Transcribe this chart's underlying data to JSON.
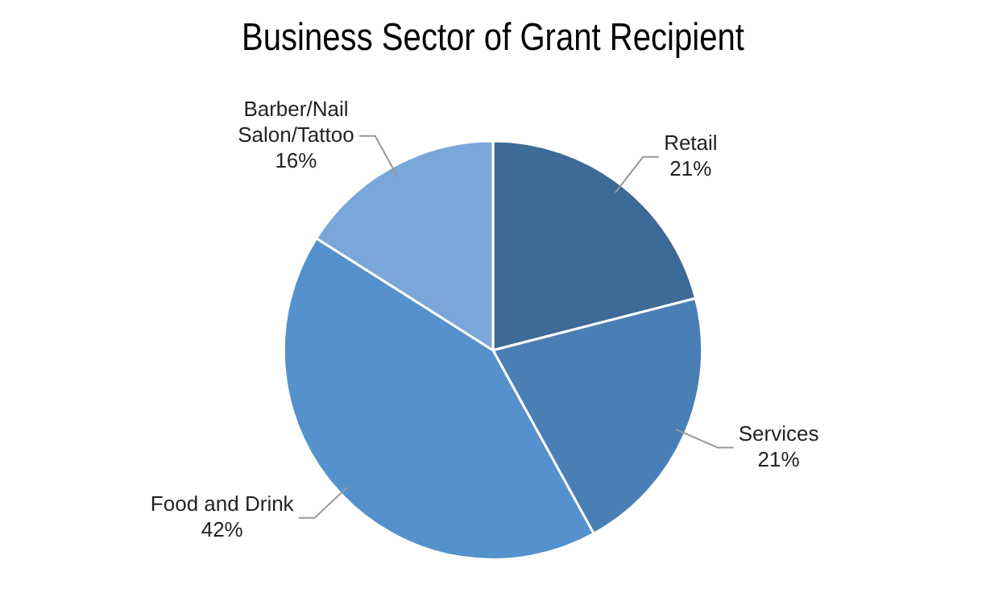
{
  "chart_data": {
    "type": "pie",
    "title": "Business Sector of Grant Recipient",
    "categories": [
      "Retail",
      "Services",
      "Food and Drink",
      "Barber/Nail Salon/Tattoo"
    ],
    "values": [
      21,
      21,
      42,
      16
    ],
    "colors": [
      "#3e6a97",
      "#4a7fb5",
      "#5591cc",
      "#7aa6d9"
    ],
    "value_labels": [
      "21%",
      "21%",
      "42%",
      "16%"
    ],
    "legend": false
  }
}
